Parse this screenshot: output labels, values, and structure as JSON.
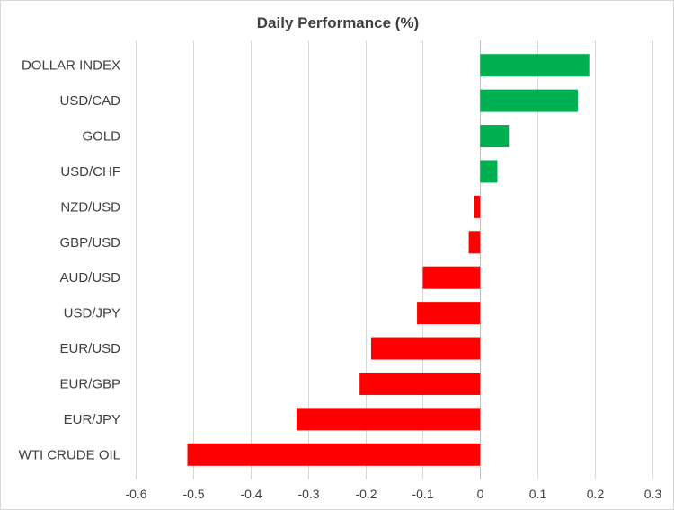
{
  "chart_data": {
    "type": "bar",
    "orientation": "horizontal",
    "title": "Daily Performance (%)",
    "categories": [
      "DOLLAR INDEX",
      "USD/CAD",
      "GOLD",
      "USD/CHF",
      "NZD/USD",
      "GBP/USD",
      "AUD/USD",
      "USD/JPY",
      "EUR/USD",
      "EUR/GBP",
      "EUR/JPY",
      "WTI CRUDE OIL"
    ],
    "values": [
      0.19,
      0.17,
      0.05,
      0.03,
      -0.01,
      -0.02,
      -0.1,
      -0.11,
      -0.19,
      -0.21,
      -0.32,
      -0.51
    ],
    "xlim": [
      -0.6,
      0.3
    ],
    "xticks": [
      -0.6,
      -0.5,
      -0.4,
      -0.3,
      -0.2,
      -0.1,
      0,
      0.1,
      0.2,
      0.3
    ],
    "tick_labels": [
      "-0.6",
      "-0.5",
      "-0.4",
      "-0.3",
      "-0.2",
      "-0.1",
      "0",
      "0.1",
      "0.2",
      "0.3"
    ],
    "grid": "vertical",
    "legend": "none",
    "colors": {
      "positive": "#00b050",
      "negative": "#ff0000"
    }
  }
}
